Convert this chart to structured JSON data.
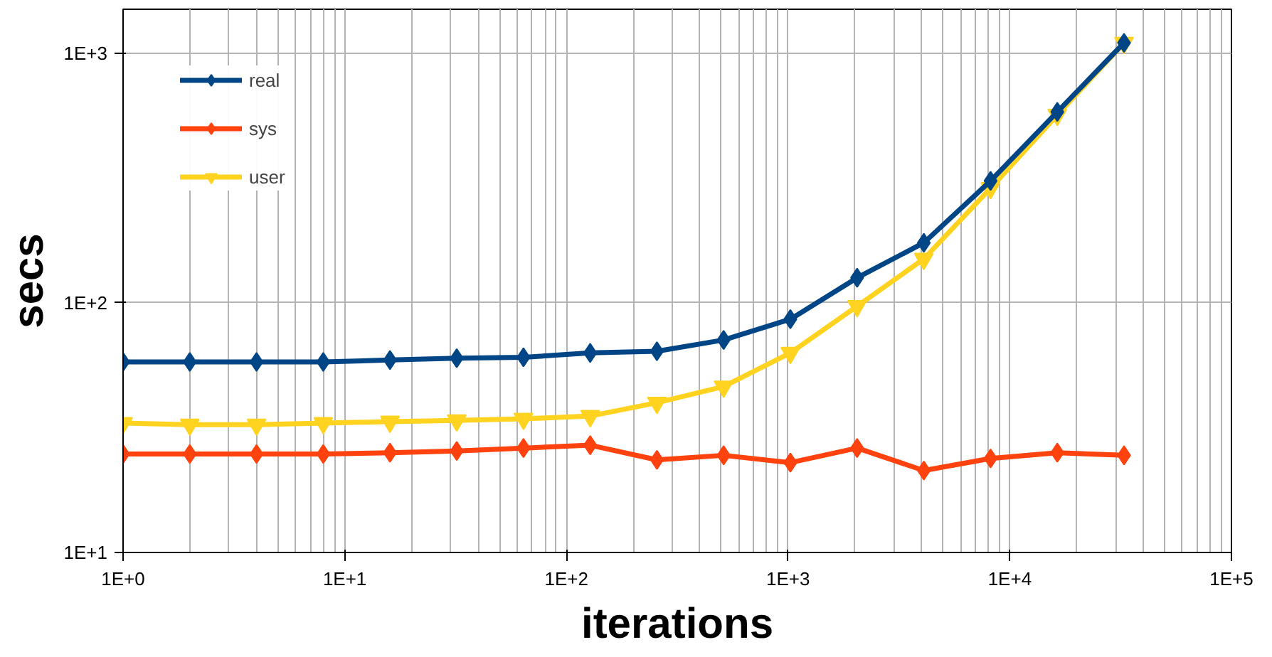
{
  "chart_data": {
    "type": "line",
    "xlabel": "iterations",
    "ylabel": "secs",
    "log": "xy",
    "grid": true,
    "legend": "top left",
    "x": [
      1,
      2,
      4,
      8,
      16,
      32,
      64,
      128,
      256,
      512,
      1024,
      2048,
      4096,
      8192,
      16384,
      32768
    ],
    "xlim": [
      1,
      100000
    ],
    "xticks": [
      {
        "value": 1,
        "label": "1E+0"
      },
      {
        "value": 10,
        "label": "1E+1"
      },
      {
        "value": 100,
        "label": "1E+2"
      },
      {
        "value": 1000,
        "label": "1E+3"
      },
      {
        "value": 10000,
        "label": "1E+4"
      },
      {
        "value": 100000,
        "label": "1E+5"
      }
    ],
    "ylim": [
      10,
      1500
    ],
    "yticks": [
      {
        "value": 10,
        "label": "1E+1"
      },
      {
        "value": 100,
        "label": "1E+2"
      },
      {
        "value": 1000,
        "label": "1E+3"
      }
    ],
    "series": [
      {
        "name": "real",
        "color": "#004586",
        "marker": "diamond",
        "values": [
          58,
          58,
          58,
          58,
          59,
          60,
          60.5,
          63,
          64,
          71,
          86,
          126,
          174,
          308,
          582,
          1100
        ]
      },
      {
        "name": "sys",
        "color": "#ff420e",
        "marker": "diamond",
        "values": [
          24.8,
          24.8,
          24.8,
          24.8,
          25.1,
          25.5,
          26.2,
          26.9,
          23.5,
          24.5,
          22.9,
          26.2,
          21.3,
          23.8,
          25.1,
          24.5
        ]
      },
      {
        "name": "user",
        "color": "#ffd320",
        "marker": "triangle",
        "values": [
          33,
          32.5,
          32.5,
          33,
          33.4,
          33.8,
          34.3,
          35.2,
          39.8,
          46.2,
          63,
          97,
          150,
          288,
          566,
          1100
        ]
      }
    ]
  }
}
